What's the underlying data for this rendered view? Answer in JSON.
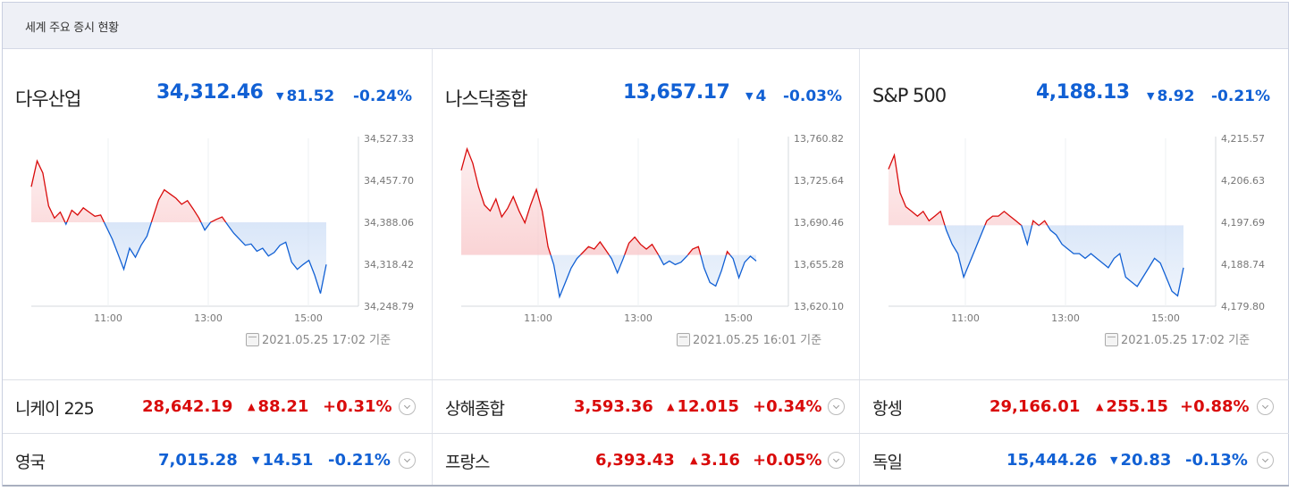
{
  "header": {
    "title": "세계 주요 증시 현황"
  },
  "panels": [
    {
      "name": "다우산업",
      "value": "34,312.46",
      "change": "81.52",
      "rate": "-0.24%",
      "direction": "down",
      "y_ticks": [
        "34,527.33",
        "34,457.70",
        "34,388.06",
        "34,318.42",
        "34,248.79"
      ],
      "x_ticks": [
        "11:00",
        "13:00",
        "15:00"
      ],
      "timestamp": "2021.05.25 17:02 기준",
      "chart_data": {
        "type": "area",
        "ylim": [
          34248.79,
          34527.33
        ],
        "baseline": 34388.06,
        "xlim": [
          "09:30",
          "16:00"
        ],
        "points": [
          34447,
          34490,
          34470,
          34415,
          34395,
          34405,
          34385,
          34408,
          34400,
          34412,
          34405,
          34398,
          34400,
          34380,
          34360,
          34335,
          34310,
          34345,
          34330,
          34350,
          34365,
          34395,
          34425,
          34442,
          34435,
          34428,
          34418,
          34424,
          34410,
          34395,
          34375,
          34388,
          34393,
          34397,
          34383,
          34370,
          34360,
          34350,
          34352,
          34340,
          34345,
          34332,
          34338,
          34350,
          34355,
          34322,
          34310,
          34318,
          34325,
          34300,
          34270,
          34318
        ]
      }
    },
    {
      "name": "나스닥종합",
      "value": "13,657.17",
      "change": "4",
      "rate": "-0.03%",
      "direction": "down",
      "y_ticks": [
        "13,760.82",
        "13,725.64",
        "13,690.46",
        "13,655.28",
        "13,620.10"
      ],
      "x_ticks": [
        "11:00",
        "13:00",
        "15:00"
      ],
      "timestamp": "2021.05.25 16:01 기준",
      "chart_data": {
        "type": "area",
        "ylim": [
          13620.1,
          13760.82
        ],
        "baseline": 13663,
        "xlim": [
          "09:30",
          "16:00"
        ],
        "points": [
          13734,
          13752,
          13740,
          13720,
          13705,
          13700,
          13710,
          13695,
          13702,
          13712,
          13700,
          13690,
          13705,
          13718,
          13700,
          13670,
          13655,
          13628,
          13640,
          13652,
          13660,
          13665,
          13670,
          13668,
          13674,
          13667,
          13660,
          13648,
          13660,
          13673,
          13678,
          13672,
          13668,
          13672,
          13664,
          13655,
          13658,
          13655,
          13657,
          13662,
          13668,
          13670,
          13652,
          13640,
          13637,
          13650,
          13666,
          13660,
          13644,
          13657,
          13662,
          13658
        ]
      }
    },
    {
      "name": "S&P 500",
      "value": "4,188.13",
      "change": "8.92",
      "rate": "-0.21%",
      "direction": "down",
      "y_ticks": [
        "4,215.57",
        "4,206.63",
        "4,197.69",
        "4,188.74",
        "4,179.80"
      ],
      "x_ticks": [
        "11:00",
        "13:00",
        "15:00"
      ],
      "timestamp": "2021.05.25 17:02 기준",
      "chart_data": {
        "type": "area",
        "ylim": [
          4179.8,
          4215.57
        ],
        "baseline": 4197.05,
        "xlim": [
          "09:30",
          "16:00"
        ],
        "points": [
          4209,
          4212,
          4204,
          4201,
          4200,
          4199,
          4200,
          4198,
          4199,
          4200,
          4196,
          4193,
          4191,
          4186,
          4189,
          4192,
          4195,
          4198,
          4199,
          4199,
          4200,
          4199,
          4198,
          4197,
          4193,
          4198,
          4197,
          4198,
          4196,
          4195,
          4193,
          4192,
          4191,
          4191,
          4190,
          4191,
          4190,
          4189,
          4188,
          4190,
          4191,
          4186,
          4185,
          4184,
          4186,
          4188,
          4190,
          4189,
          4186,
          4183,
          4182,
          4188
        ]
      }
    }
  ],
  "markets": [
    [
      {
        "name": "니케이 225",
        "value": "28,642.19",
        "change": "88.21",
        "rate": "+0.31%",
        "direction": "up"
      },
      {
        "name": "상해종합",
        "value": "3,593.36",
        "change": "12.015",
        "rate": "+0.34%",
        "direction": "up"
      },
      {
        "name": "항셍",
        "value": "29,166.01",
        "change": "255.15",
        "rate": "+0.88%",
        "direction": "up"
      }
    ],
    [
      {
        "name": "영국",
        "value": "7,015.28",
        "change": "14.51",
        "rate": "-0.21%",
        "direction": "down"
      },
      {
        "name": "프랑스",
        "value": "6,393.43",
        "change": "3.16",
        "rate": "+0.05%",
        "direction": "up"
      },
      {
        "name": "독일",
        "value": "15,444.26",
        "change": "20.83",
        "rate": "-0.13%",
        "direction": "down"
      }
    ]
  ],
  "colors": {
    "up": "#d90b0b",
    "down": "#1160d4",
    "up_fill": "#f9c9cb",
    "down_fill": "#c7daf5"
  }
}
